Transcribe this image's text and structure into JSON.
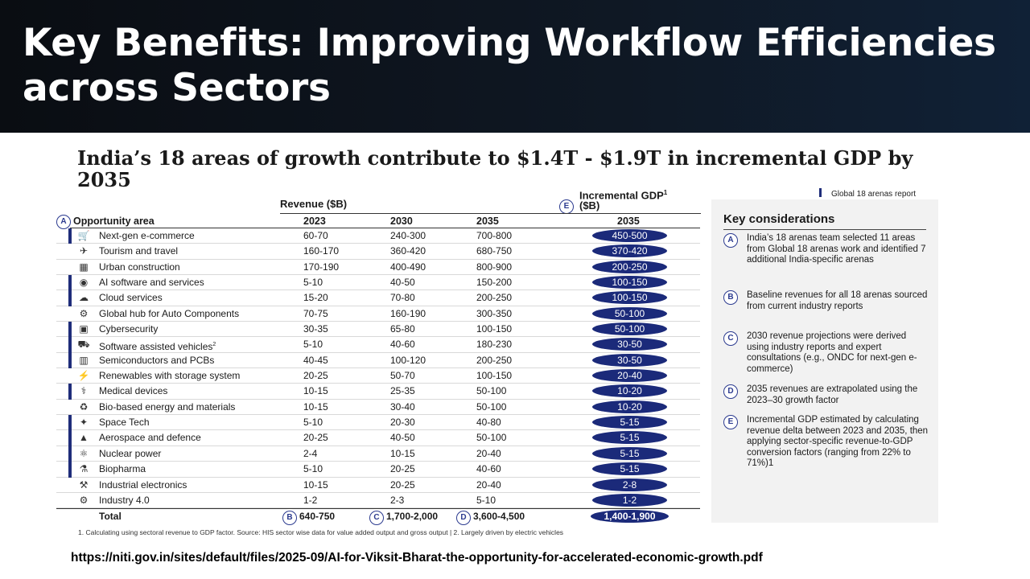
{
  "slide": {
    "title": "Key Benefits: Improving Workflow Efficiencies across Sectors",
    "source_url": "https://niti.gov.in/sites/default/files/2025-09/AI-for-Viksit-Bharat-the-opportunity-for-accelerated-economic-growth.pdf"
  },
  "figure": {
    "heading": "India’s 18 areas of growth contribute to $1.4T - $1.9T in incremental GDP by 2035",
    "legend_global": "Global 18 arenas report",
    "revenue_header": "Revenue ($B)",
    "incremental_header": "Incremental GDP",
    "incremental_header_sup": "1",
    "incremental_header_unit": "($B)",
    "incremental_badge": "E",
    "opportunity_badge": "A",
    "opportunity_header": "Opportunity area",
    "col_2023": "2023",
    "col_2030": "2030",
    "col_2035": "2035",
    "col_inc_2035": "2035",
    "rows": [
      {
        "icon": "cart-icon",
        "glyph": "🛒",
        "name": "Next-gen e-commerce",
        "sup": "",
        "marked": true,
        "r2023": "60-70",
        "r2030": "240-300",
        "r2035": "700-800",
        "gdp": "450-500"
      },
      {
        "icon": "plane-icon",
        "glyph": "✈",
        "name": "Tourism and travel",
        "sup": "",
        "marked": false,
        "r2023": "160-170",
        "r2030": "360-420",
        "r2035": "680-750",
        "gdp": "370-420"
      },
      {
        "icon": "building-icon",
        "glyph": "▦",
        "name": "Urban construction",
        "sup": "",
        "marked": false,
        "r2023": "170-190",
        "r2030": "400-490",
        "r2035": "800-900",
        "gdp": "200-250"
      },
      {
        "icon": "chat-ai-icon",
        "glyph": "◉",
        "name": "AI software and services",
        "sup": "",
        "marked": true,
        "r2023": "5-10",
        "r2030": "40-50",
        "r2035": "150-200",
        "gdp": "100-150"
      },
      {
        "icon": "cloud-icon",
        "glyph": "☁",
        "name": "Cloud services",
        "sup": "",
        "marked": true,
        "r2023": "15-20",
        "r2030": "70-80",
        "r2035": "200-250",
        "gdp": "100-150"
      },
      {
        "icon": "network-icon",
        "glyph": "⚙",
        "name": "Global hub for Auto Components",
        "sup": "",
        "marked": false,
        "r2023": "70-75",
        "r2030": "160-190",
        "r2035": "300-350",
        "gdp": "50-100"
      },
      {
        "icon": "shield-screen-icon",
        "glyph": "▣",
        "name": "Cybersecurity",
        "sup": "",
        "marked": true,
        "r2023": "30-35",
        "r2030": "65-80",
        "r2035": "100-150",
        "gdp": "50-100"
      },
      {
        "icon": "car-icon",
        "glyph": "⛟",
        "name": "Software assisted vehicles",
        "sup": "2",
        "marked": true,
        "r2023": "5-10",
        "r2030": "40-60",
        "r2035": "180-230",
        "gdp": "30-50"
      },
      {
        "icon": "chip-icon",
        "glyph": "▥",
        "name": "Semiconductors and PCBs",
        "sup": "",
        "marked": true,
        "r2023": "40-45",
        "r2030": "100-120",
        "r2035": "200-250",
        "gdp": "30-50"
      },
      {
        "icon": "battery-icon",
        "glyph": "⚡",
        "name": "Renewables with storage system",
        "sup": "",
        "marked": false,
        "r2023": "20-25",
        "r2030": "50-70",
        "r2035": "100-150",
        "gdp": "20-40"
      },
      {
        "icon": "microscope-icon",
        "glyph": "⚕",
        "name": "Medical devices",
        "sup": "",
        "marked": true,
        "r2023": "10-15",
        "r2030": "25-35",
        "r2035": "50-100",
        "gdp": "10-20"
      },
      {
        "icon": "leaf-icon",
        "glyph": "♻",
        "name": "Bio-based energy and materials",
        "sup": "",
        "marked": false,
        "r2023": "10-15",
        "r2030": "30-40",
        "r2035": "50-100",
        "gdp": "10-20"
      },
      {
        "icon": "satellite-icon",
        "glyph": "✦",
        "name": "Space Tech",
        "sup": "",
        "marked": true,
        "r2023": "5-10",
        "r2030": "20-30",
        "r2035": "40-80",
        "gdp": "5-15"
      },
      {
        "icon": "rocket-icon",
        "glyph": "▲",
        "name": "Aerospace and defence",
        "sup": "",
        "marked": true,
        "r2023": "20-25",
        "r2030": "40-50",
        "r2035": "50-100",
        "gdp": "5-15"
      },
      {
        "icon": "atom-icon",
        "glyph": "⚛",
        "name": "Nuclear power",
        "sup": "",
        "marked": true,
        "r2023": "2-4",
        "r2030": "10-15",
        "r2035": "20-40",
        "gdp": "5-15"
      },
      {
        "icon": "flask-icon",
        "glyph": "⚗",
        "name": "Biopharma",
        "sup": "",
        "marked": true,
        "r2023": "5-10",
        "r2030": "20-25",
        "r2035": "40-60",
        "gdp": "5-15"
      },
      {
        "icon": "robot-arm-icon",
        "glyph": "⚒",
        "name": "Industrial electronics",
        "sup": "",
        "marked": false,
        "r2023": "10-15",
        "r2030": "20-25",
        "r2035": "20-40",
        "gdp": "2-8"
      },
      {
        "icon": "gears-icon",
        "glyph": "⚙",
        "name": "Industry 4.0",
        "sup": "",
        "marked": false,
        "r2023": "1-2",
        "r2030": "2-3",
        "r2035": "5-10",
        "gdp": "1-2"
      }
    ],
    "total": {
      "label": "Total",
      "b2023": "B",
      "r2023": "640-750",
      "b2030": "C",
      "r2030": "1,700-2,000",
      "b2035": "D",
      "r2035": "3,600-4,500",
      "gdp": "1,400-1,900"
    },
    "footnote": "1.    Calculating using sectoral revenue to GDP factor. Source: HIS sector wise data for value added output and gross output |      2.    Largely driven by electric vehicles",
    "key_considerations": {
      "title": "Key considerations",
      "items": [
        {
          "badge": "A",
          "text": "India’s 18 arenas team selected 11 areas from Global 18 arenas work and identified 7 additional India-specific arenas"
        },
        {
          "badge": "B",
          "text": "Baseline revenues for all 18 arenas sourced from current industry reports"
        },
        {
          "badge": "C",
          "text": "2030 revenue projections were derived using industry reports and expert consultations (e.g., ONDC for next-gen e-commerce)"
        },
        {
          "badge": "D",
          "text": "2035 revenues are extrapolated using the 2023–30 growth factor"
        },
        {
          "badge": "E",
          "text": "Incremental GDP estimated by calculating revenue delta between 2023 and 2035, then applying sector-specific revenue-to-GDP conversion factors (ranging from 22% to 71%)1"
        }
      ]
    },
    "colors": {
      "accent": "#1b2a7a",
      "panel": "#f2f2f2"
    }
  }
}
